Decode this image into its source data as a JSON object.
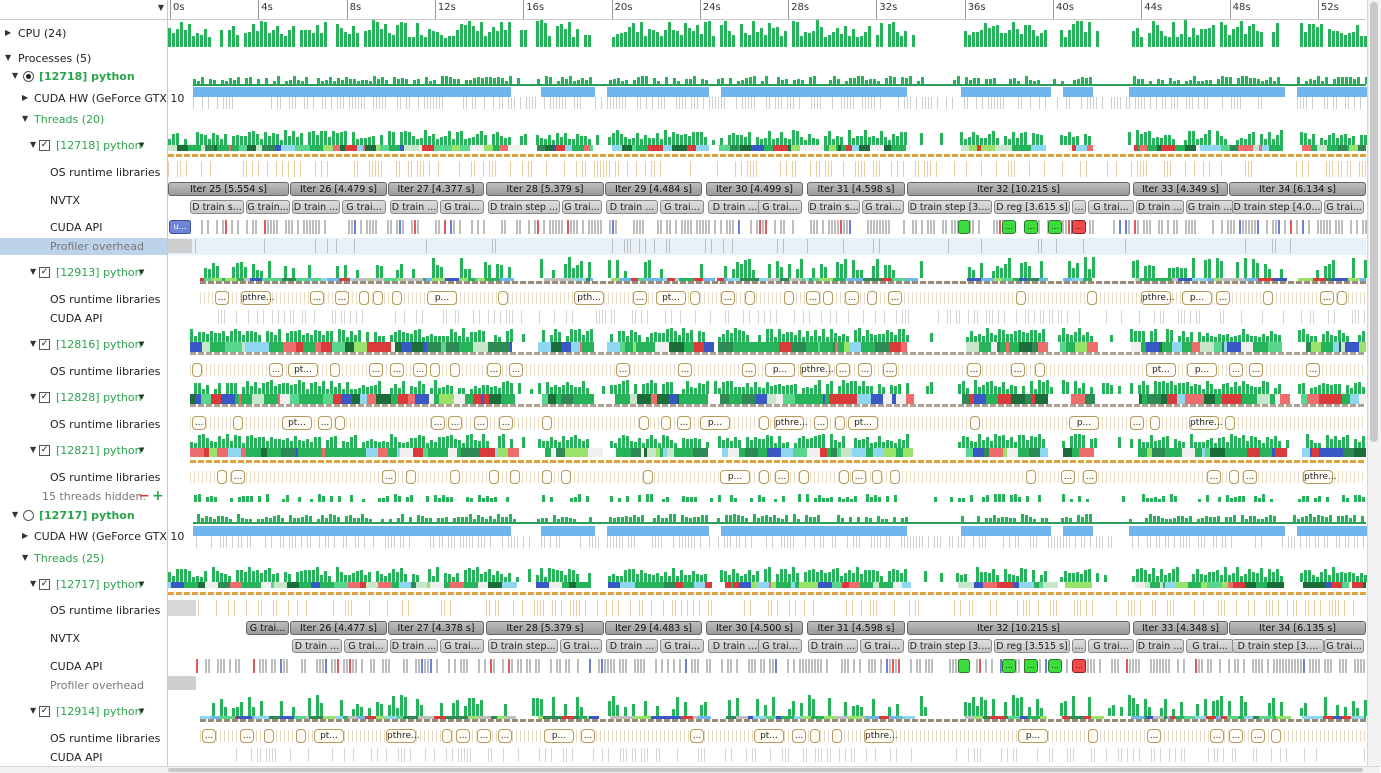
{
  "ruler": {
    "ticks": [
      "0s",
      "4s",
      "8s",
      "12s",
      "16s",
      "20s",
      "24s",
      "28s",
      "32s",
      "36s",
      "40s",
      "44s",
      "48s",
      "52s"
    ]
  },
  "tree": {
    "cpu": "CPU (24)",
    "processes": "Processes (5)",
    "p1": {
      "name": "[12718] python",
      "cuda_hw": "CUDA HW (GeForce GTX 10",
      "threads": "Threads (20)",
      "t1": {
        "name": "[12718] python",
        "os": "OS runtime libraries",
        "nvtx": "NVTX",
        "cuda_api": "CUDA API",
        "overhead": "Profiler overhead"
      },
      "t2": {
        "name": "[12913] python",
        "os": "OS runtime libraries",
        "cuda_api": "CUDA API"
      },
      "t3": {
        "name": "[12816] python",
        "os": "OS runtime libraries"
      },
      "t4": {
        "name": "[12828] python",
        "os": "OS runtime libraries"
      },
      "t5": {
        "name": "[12821] python",
        "os": "OS runtime libraries"
      },
      "hidden": "15 threads hidden."
    },
    "p2": {
      "name": "[12717] python",
      "cuda_hw": "CUDA HW (GeForce GTX 10",
      "threads": "Threads (25)",
      "t1": {
        "name": "[12717] python",
        "os": "OS runtime libraries",
        "nvtx": "NVTX",
        "cuda_api": "CUDA API",
        "overhead": "Profiler overhead"
      },
      "t2": {
        "name": "[12914] python",
        "os": "OS runtime libraries",
        "cuda_api": "CUDA API"
      }
    }
  },
  "p1_nvtx_iters": [
    "Iter 25 [5.554 s]",
    "Iter 26 [4.479 s]",
    "Iter 27 [4.377 s]",
    "Iter 28 [5.379 s]",
    "Iter 29 [4.484 s]",
    "Iter 30 [4.499 s]",
    "Iter 31 [4.598 s]",
    "Iter 32 [10.215 s]",
    "Iter 33 [4.349 s]",
    "Iter 34 [6.134 s]"
  ],
  "p1_nvtx_steps": [
    "D train s...",
    "G train...",
    "D train ...",
    "G trai...",
    "D train ...",
    "G trai...",
    "D train step ...",
    "G trai...",
    "D train ...",
    "G trai...",
    "D train ...",
    "G trai...",
    "D train s...",
    "G trai...",
    "D train step [3....",
    "D reg [3.615 s]",
    "...",
    "G trai...",
    "D train ...",
    "G train ...",
    "D train step [4.0...",
    "G trai..."
  ],
  "p2_nvtx_iters": [
    "G trai...",
    "Iter 26 [4.477 s]",
    "Iter 27 [4.378 s]",
    "Iter 28 [5.379 s]",
    "Iter 29 [4.483 s]",
    "Iter 30 [4.500 s]",
    "Iter 31 [4.598 s]",
    "Iter 32 [10.215 s]",
    "Iter 33 [4.348 s]",
    "Iter 34 [6.135 s]"
  ],
  "p2_nvtx_steps": [
    "D train ...",
    "G trai...",
    "D train ...",
    "G trai...",
    "D train step...",
    "G trai...",
    "D train ...",
    "G trai...",
    "D train ...",
    "G trai...",
    "D train ...",
    "G trai...",
    "D train step [3....",
    "D reg [3.515 s]",
    "...",
    "G trai...",
    "D train ...",
    "G trai...",
    "D train step [3....",
    "G trai..."
  ],
  "os_labels": {
    "pthre": "pthre...",
    "pt": "pt...",
    "p": "p...",
    "pth": "pth...",
    "ellipsis": "...",
    "u": "u..."
  },
  "colors": {
    "green": "#27b35a",
    "accent_text": "#2aa34a",
    "cuda_blue": "#6fb6ee",
    "selected_row": "#bcd3ea",
    "nvtx_gray": "#a9a9a9",
    "os_border": "#b69a5f"
  }
}
